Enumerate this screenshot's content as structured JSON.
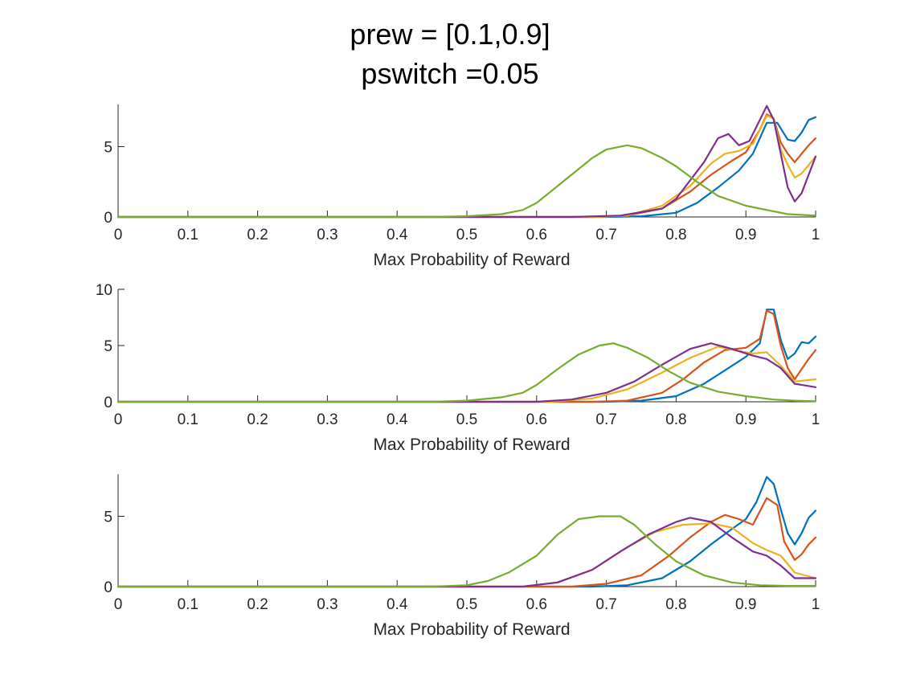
{
  "title_lines": [
    "prew = [0.1,0.9]",
    "pswitch =0.05"
  ],
  "colors": {
    "blue": "#0072BD",
    "orange": "#D95319",
    "yellow": "#EDB120",
    "purple": "#7E2F8E",
    "green": "#77AC30"
  },
  "chart_data": [
    {
      "type": "line",
      "xlabel": "Max Probability of Reward",
      "ylabel": "",
      "xlim": [
        0,
        1
      ],
      "ylim": [
        0,
        8
      ],
      "xticks": [
        "0",
        "0.1",
        "0.2",
        "0.3",
        "0.4",
        "0.5",
        "0.6",
        "0.7",
        "0.8",
        "0.9",
        "1"
      ],
      "yticks": [
        {
          "value": 0,
          "label": "0"
        },
        {
          "value": 5,
          "label": "5"
        }
      ],
      "grid": false,
      "series": [
        {
          "color": "blue",
          "x": [
            0,
            0.7,
            0.75,
            0.8,
            0.83,
            0.86,
            0.89,
            0.91,
            0.93,
            0.945,
            0.96,
            0.97,
            0.98,
            0.99,
            1.0
          ],
          "y": [
            0,
            0,
            0.05,
            0.3,
            1.0,
            2.1,
            3.3,
            4.5,
            6.7,
            6.7,
            5.5,
            5.4,
            6.0,
            6.9,
            7.1
          ]
        },
        {
          "color": "orange",
          "x": [
            0,
            0.68,
            0.73,
            0.78,
            0.82,
            0.85,
            0.88,
            0.9,
            0.92,
            0.93,
            0.94,
            0.95,
            0.96,
            0.97,
            0.98,
            0.99,
            1.0
          ],
          "y": [
            0,
            0,
            0.1,
            0.6,
            1.8,
            3.0,
            4.0,
            4.6,
            6.2,
            7.3,
            7.0,
            5.3,
            4.5,
            3.9,
            4.5,
            5.1,
            5.6
          ]
        },
        {
          "color": "yellow",
          "x": [
            0,
            0.68,
            0.73,
            0.78,
            0.82,
            0.85,
            0.87,
            0.89,
            0.91,
            0.93,
            0.94,
            0.95,
            0.96,
            0.97,
            0.98,
            0.99,
            1.0
          ],
          "y": [
            0,
            0,
            0.1,
            0.8,
            2.2,
            3.8,
            4.5,
            4.7,
            5.2,
            7.2,
            7.0,
            4.8,
            3.7,
            2.8,
            3.1,
            3.7,
            4.3
          ]
        },
        {
          "color": "purple",
          "x": [
            0,
            0.65,
            0.72,
            0.78,
            0.8,
            0.82,
            0.84,
            0.86,
            0.875,
            0.89,
            0.905,
            0.92,
            0.93,
            0.94,
            0.95,
            0.96,
            0.97,
            0.98,
            0.99,
            1.0
          ],
          "y": [
            0,
            0,
            0.1,
            0.6,
            1.3,
            2.6,
            3.9,
            5.6,
            5.9,
            5.1,
            5.4,
            6.9,
            7.9,
            6.9,
            4.5,
            2.1,
            1.1,
            1.7,
            3.0,
            4.3
          ]
        },
        {
          "color": "green",
          "x": [
            0,
            0.45,
            0.5,
            0.55,
            0.58,
            0.6,
            0.62,
            0.65,
            0.68,
            0.7,
            0.73,
            0.75,
            0.78,
            0.8,
            0.83,
            0.86,
            0.9,
            0.93,
            0.96,
            1.0
          ],
          "y": [
            0,
            0,
            0.05,
            0.2,
            0.5,
            1.0,
            1.8,
            3.0,
            4.2,
            4.8,
            5.1,
            4.9,
            4.2,
            3.6,
            2.5,
            1.5,
            0.8,
            0.5,
            0.2,
            0.1
          ]
        }
      ]
    },
    {
      "type": "line",
      "xlabel": "Max Probability of Reward",
      "ylabel": "",
      "xlim": [
        0,
        1
      ],
      "ylim": [
        0,
        10
      ],
      "xticks": [
        "0",
        "0.1",
        "0.2",
        "0.3",
        "0.4",
        "0.5",
        "0.6",
        "0.7",
        "0.8",
        "0.9",
        "1"
      ],
      "yticks": [
        {
          "value": 0,
          "label": "0"
        },
        {
          "value": 5,
          "label": "5"
        },
        {
          "value": 10,
          "label": "10"
        }
      ],
      "grid": false,
      "series": [
        {
          "color": "blue",
          "x": [
            0,
            0.7,
            0.75,
            0.8,
            0.84,
            0.87,
            0.9,
            0.92,
            0.93,
            0.94,
            0.95,
            0.96,
            0.97,
            0.98,
            0.99,
            1.0
          ],
          "y": [
            0,
            0,
            0.1,
            0.5,
            1.6,
            2.8,
            4.0,
            5.2,
            8.2,
            8.2,
            5.5,
            3.8,
            4.3,
            5.3,
            5.2,
            5.8
          ]
        },
        {
          "color": "orange",
          "x": [
            0,
            0.68,
            0.73,
            0.78,
            0.81,
            0.84,
            0.87,
            0.9,
            0.92,
            0.93,
            0.94,
            0.95,
            0.96,
            0.97,
            0.98,
            0.99,
            1.0
          ],
          "y": [
            0,
            0,
            0.1,
            0.8,
            2.0,
            3.5,
            4.6,
            4.8,
            5.6,
            8.1,
            7.8,
            5.0,
            3.0,
            2.0,
            2.9,
            3.8,
            4.6
          ]
        },
        {
          "color": "yellow",
          "x": [
            0,
            0.62,
            0.68,
            0.73,
            0.78,
            0.82,
            0.86,
            0.89,
            0.91,
            0.93,
            0.95,
            0.97,
            1.0
          ],
          "y": [
            0,
            0,
            0.3,
            1.1,
            2.6,
            3.9,
            4.9,
            4.5,
            4.3,
            4.4,
            3.2,
            1.8,
            2.0
          ]
        },
        {
          "color": "purple",
          "x": [
            0,
            0.6,
            0.65,
            0.7,
            0.74,
            0.78,
            0.82,
            0.85,
            0.88,
            0.91,
            0.93,
            0.95,
            0.97,
            1.0
          ],
          "y": [
            0,
            0,
            0.2,
            0.8,
            1.8,
            3.3,
            4.7,
            5.2,
            4.7,
            4.1,
            3.8,
            3.0,
            1.6,
            1.3
          ]
        },
        {
          "color": "green",
          "x": [
            0,
            0.45,
            0.5,
            0.55,
            0.58,
            0.6,
            0.63,
            0.66,
            0.69,
            0.71,
            0.73,
            0.76,
            0.79,
            0.82,
            0.86,
            0.9,
            0.94,
            0.97,
            1.0
          ],
          "y": [
            0,
            0,
            0.1,
            0.4,
            0.8,
            1.5,
            2.9,
            4.2,
            5.0,
            5.2,
            4.8,
            3.9,
            2.7,
            1.7,
            0.9,
            0.5,
            0.2,
            0.1,
            0.05
          ]
        }
      ]
    },
    {
      "type": "line",
      "xlabel": "Max Probability of Reward",
      "ylabel": "",
      "xlim": [
        0,
        1
      ],
      "ylim": [
        0,
        8
      ],
      "xticks": [
        "0",
        "0.1",
        "0.2",
        "0.3",
        "0.4",
        "0.5",
        "0.6",
        "0.7",
        "0.8",
        "0.9",
        "1"
      ],
      "yticks": [
        {
          "value": 0,
          "label": "0"
        },
        {
          "value": 5,
          "label": "5"
        }
      ],
      "grid": false,
      "series": [
        {
          "color": "blue",
          "x": [
            0,
            0.68,
            0.73,
            0.78,
            0.82,
            0.85,
            0.88,
            0.9,
            0.915,
            0.93,
            0.94,
            0.95,
            0.96,
            0.97,
            0.98,
            0.99,
            1.0
          ],
          "y": [
            0,
            0,
            0.1,
            0.6,
            1.8,
            3.0,
            4.1,
            4.8,
            6.0,
            7.8,
            7.3,
            5.5,
            3.8,
            3.0,
            3.8,
            4.9,
            5.4
          ]
        },
        {
          "color": "orange",
          "x": [
            0,
            0.65,
            0.7,
            0.75,
            0.79,
            0.82,
            0.85,
            0.87,
            0.89,
            0.91,
            0.93,
            0.945,
            0.955,
            0.97,
            0.98,
            0.99,
            1.0
          ],
          "y": [
            0,
            0,
            0.2,
            0.8,
            2.2,
            3.5,
            4.6,
            5.1,
            4.8,
            4.4,
            6.3,
            5.8,
            3.2,
            1.9,
            2.3,
            3.0,
            3.5
          ]
        },
        {
          "color": "yellow",
          "x": [
            0,
            0.58,
            0.63,
            0.68,
            0.73,
            0.77,
            0.81,
            0.85,
            0.88,
            0.91,
            0.93,
            0.95,
            0.97,
            1.0
          ],
          "y": [
            0,
            0,
            0.3,
            1.2,
            2.8,
            3.9,
            4.4,
            4.5,
            4.2,
            3.1,
            2.6,
            2.2,
            1.0,
            0.6
          ]
        },
        {
          "color": "purple",
          "x": [
            0,
            0.58,
            0.63,
            0.68,
            0.72,
            0.76,
            0.8,
            0.82,
            0.85,
            0.88,
            0.91,
            0.93,
            0.95,
            0.97,
            1.0
          ],
          "y": [
            0,
            0,
            0.3,
            1.2,
            2.5,
            3.7,
            4.6,
            4.9,
            4.6,
            3.5,
            2.5,
            2.2,
            1.5,
            0.6,
            0.6
          ]
        },
        {
          "color": "green",
          "x": [
            0,
            0.45,
            0.5,
            0.53,
            0.56,
            0.6,
            0.63,
            0.66,
            0.69,
            0.72,
            0.74,
            0.77,
            0.8,
            0.84,
            0.88,
            0.92,
            0.96,
            1.0
          ],
          "y": [
            0,
            0,
            0.1,
            0.4,
            1.0,
            2.2,
            3.7,
            4.8,
            5.0,
            5.0,
            4.4,
            3.0,
            1.8,
            0.8,
            0.3,
            0.1,
            0.05,
            0.05
          ]
        }
      ]
    }
  ]
}
